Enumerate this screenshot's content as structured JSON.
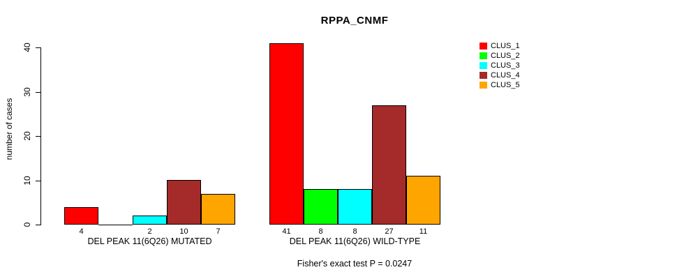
{
  "title": "RPPA_CNMF",
  "footer": "Fisher's exact test P = 0.0247",
  "y_axis": {
    "label": "number of cases",
    "ticks": [
      0,
      10,
      20,
      30,
      40
    ]
  },
  "legend": {
    "items": [
      {
        "label": "CLUS_1",
        "color": "#FF0000"
      },
      {
        "label": "CLUS_2",
        "color": "#00FF00"
      },
      {
        "label": "CLUS_3",
        "color": "#00FFFF"
      },
      {
        "label": "CLUS_4",
        "color": "#A52A2A"
      },
      {
        "label": "CLUS_5",
        "color": "#FFA500"
      }
    ]
  },
  "groups": [
    {
      "label": "DEL PEAK 11(6Q26) MUTATED",
      "values": [
        4,
        0,
        2,
        10,
        7
      ],
      "value_labels": [
        "4",
        "",
        "2",
        "10",
        "7"
      ]
    },
    {
      "label": "DEL PEAK 11(6Q26) WILD-TYPE",
      "values": [
        41,
        8,
        8,
        27,
        11
      ],
      "value_labels": [
        "41",
        "8",
        "8",
        "27",
        "11"
      ]
    }
  ],
  "chart_data": {
    "type": "bar",
    "title": "RPPA_CNMF",
    "xlabel": "",
    "ylabel": "number of cases",
    "ylim": [
      0,
      41
    ],
    "grid": false,
    "legend_position": "right",
    "categories": [
      "DEL PEAK 11(6Q26) MUTATED",
      "DEL PEAK 11(6Q26) WILD-TYPE"
    ],
    "series": [
      {
        "name": "CLUS_1",
        "color": "#FF0000",
        "values": [
          4,
          41
        ]
      },
      {
        "name": "CLUS_2",
        "color": "#00FF00",
        "values": [
          0,
          8
        ]
      },
      {
        "name": "CLUS_3",
        "color": "#00FFFF",
        "values": [
          2,
          8
        ]
      },
      {
        "name": "CLUS_4",
        "color": "#A52A2A",
        "values": [
          10,
          27
        ]
      },
      {
        "name": "CLUS_5",
        "color": "#FFA500",
        "values": [
          7,
          11
        ]
      }
    ],
    "annotation": "Fisher's exact test P = 0.0247"
  }
}
